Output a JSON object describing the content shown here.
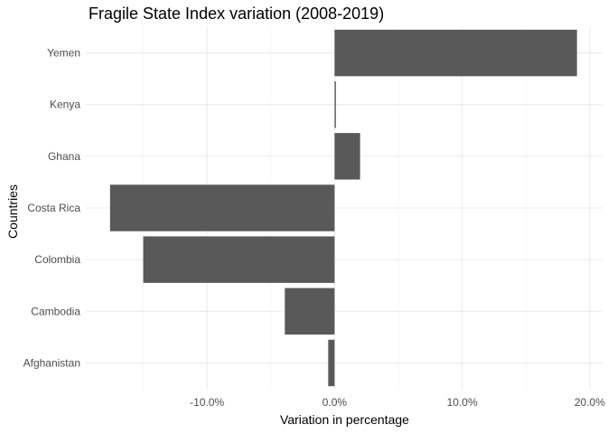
{
  "chart_data": {
    "type": "bar",
    "orientation": "horizontal",
    "title": "Fragile State Index variation (2008-2019)",
    "xlabel": "Variation in percentage",
    "ylabel": "Countries",
    "categories": [
      "Afghanistan",
      "Cambodia",
      "Colombia",
      "Costa Rica",
      "Ghana",
      "Kenya",
      "Yemen"
    ],
    "values": [
      -0.5,
      -3.9,
      -15.0,
      -17.6,
      2.0,
      0.1,
      19.0
    ],
    "xlim": [
      -19.5,
      21.0
    ],
    "xticks": [
      -10,
      0,
      10,
      20
    ],
    "xtick_labels": [
      "-10.0%",
      "0.0%",
      "10.0%",
      "20.0%"
    ],
    "xminor": [
      -15,
      -5,
      5,
      15
    ],
    "grid": true,
    "bar_color": "#595959",
    "theme": "minimal"
  }
}
